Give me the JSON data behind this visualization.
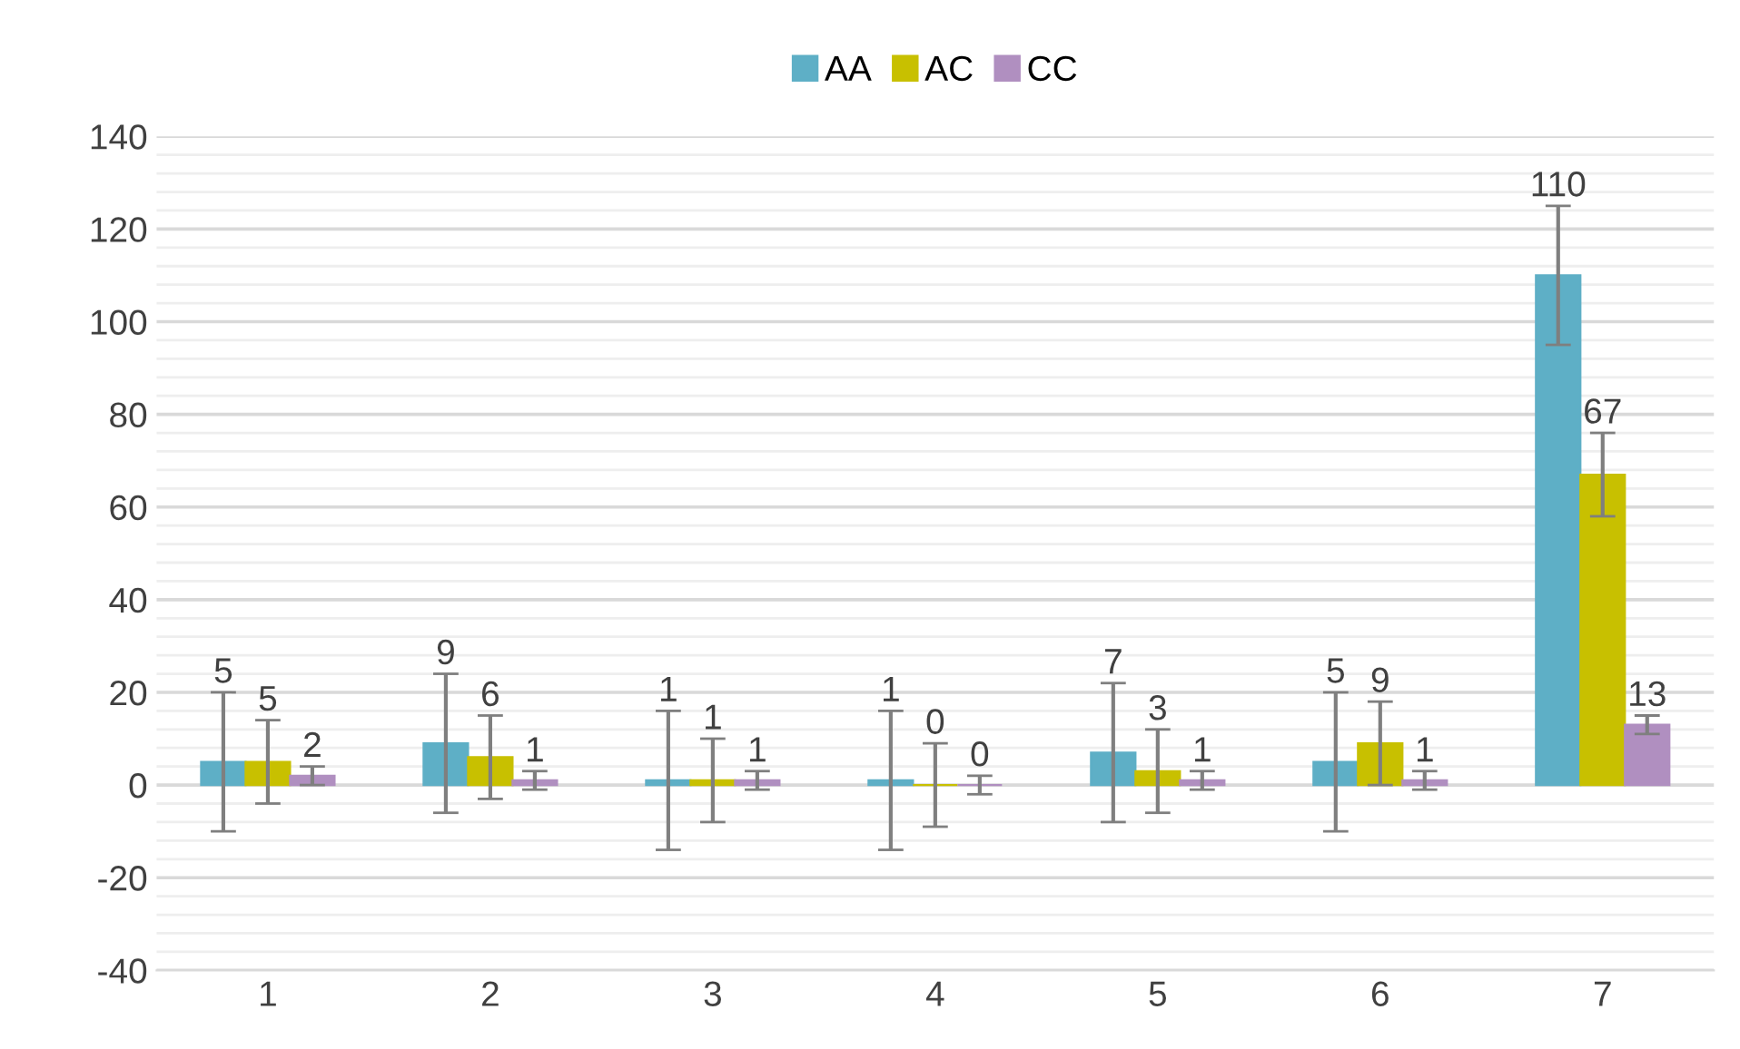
{
  "chart_data": {
    "type": "bar",
    "categories": [
      "1",
      "2",
      "3",
      "4",
      "5",
      "6",
      "7"
    ],
    "series": [
      {
        "name": "AA",
        "color": "#5eafc6",
        "values": [
          5,
          9,
          1,
          1,
          7,
          5,
          110
        ],
        "errors": [
          15,
          15,
          15,
          15,
          15,
          15,
          15
        ]
      },
      {
        "name": "AC",
        "color": "#c8c000",
        "values": [
          5,
          6,
          1,
          0,
          3,
          9,
          67
        ],
        "errors": [
          9,
          9,
          9,
          9,
          9,
          9,
          9
        ]
      },
      {
        "name": "CC",
        "color": "#b08fc0",
        "values": [
          2,
          1,
          1,
          0,
          1,
          1,
          13
        ],
        "errors": [
          2,
          2,
          2,
          2,
          2,
          2,
          2
        ]
      }
    ],
    "ylim": [
      -40,
      140
    ],
    "yticks": [
      -40,
      -20,
      0,
      20,
      40,
      60,
      80,
      100,
      120,
      140
    ],
    "grid": "y",
    "legend": "top",
    "data_labels": true
  }
}
